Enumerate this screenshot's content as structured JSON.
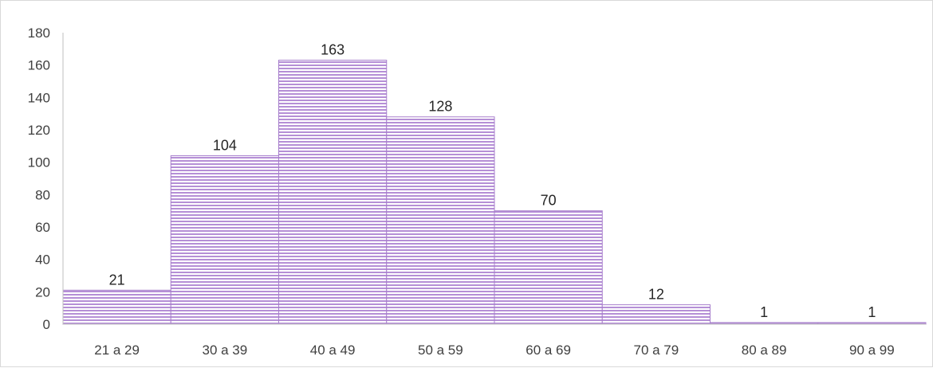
{
  "chart_data": {
    "type": "bar",
    "categories": [
      "21 a 29",
      "30 a 39",
      "40 a 49",
      "50 a 59",
      "60 a 69",
      "70 a 79",
      "80 a 89",
      "90 a 99"
    ],
    "values": [
      21,
      104,
      163,
      128,
      70,
      12,
      1,
      1
    ],
    "data_labels": [
      "21",
      "104",
      "163",
      "128",
      "70",
      "12",
      "1",
      "1"
    ],
    "ylim": [
      0,
      180
    ],
    "yticks": [
      0,
      20,
      40,
      60,
      80,
      100,
      120,
      140,
      160,
      180
    ],
    "ytick_labels": [
      "0",
      "20",
      "40",
      "60",
      "80",
      "100",
      "120",
      "140",
      "160",
      "180"
    ],
    "grid": false,
    "bar_gap": 0,
    "colors": {
      "bar_fill": "#ffffff",
      "bar_stripe": "#b58fd6",
      "bar_edge": "#a77fcc",
      "axis": "#bfbfbf",
      "text": "#404040"
    },
    "bar_pattern": "horizontal-stripes"
  }
}
